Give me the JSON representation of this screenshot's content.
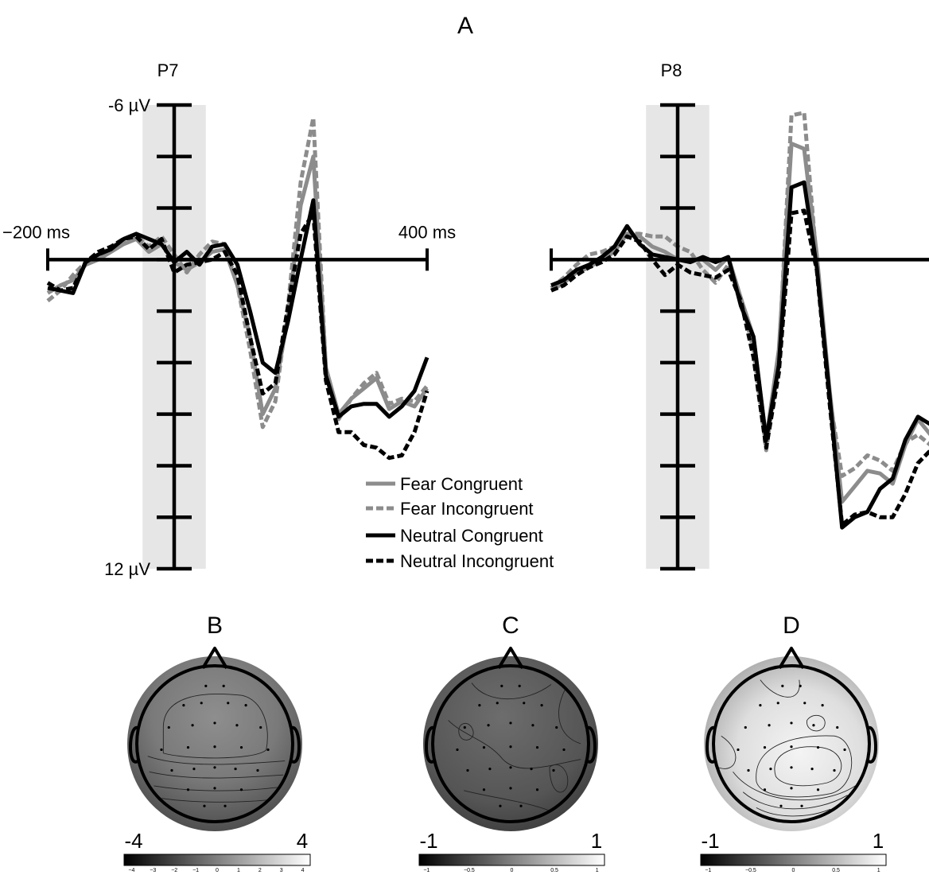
{
  "panel_labels": {
    "a": "A",
    "b": "B",
    "c": "C",
    "d": "D"
  },
  "legend": [
    {
      "name": "Fear Congruent",
      "color": "#8c8c8c",
      "dash": false
    },
    {
      "name": "Fear Incongruent",
      "color": "#8c8c8c",
      "dash": true
    },
    {
      "name": "Neutral Congruent",
      "color": "#000000",
      "dash": false
    },
    {
      "name": "Neutral Incongruent",
      "color": "#000000",
      "dash": true
    }
  ],
  "chart_data": [
    {
      "type": "line",
      "title": "P7",
      "y_axis_inverted": true,
      "x_range": [
        -200,
        400
      ],
      "y_range": [
        -6,
        12
      ],
      "x_tick_labels": [
        "−200 ms",
        "400 ms"
      ],
      "y_tick_labels": [
        "-6 µV",
        "12 µV"
      ],
      "highlight_window": [
        -50,
        50
      ],
      "series": [
        {
          "name": "Fear Congruent",
          "x": [
            -200,
            -180,
            -160,
            -140,
            -120,
            -100,
            -80,
            -60,
            -40,
            -20,
            0,
            20,
            40,
            60,
            80,
            100,
            120,
            140,
            160,
            180,
            200,
            220,
            240,
            260,
            280,
            300,
            320,
            340,
            360,
            380,
            400
          ],
          "y": [
            1.3,
            1.0,
            0.8,
            0.2,
            0,
            -0.3,
            -0.6,
            -0.8,
            -0.3,
            -0.6,
            0.1,
            0.4,
            0.1,
            -0.3,
            -0.4,
            1,
            3,
            6,
            5,
            2.2,
            -2.1,
            -4,
            4.2,
            6,
            5.4,
            5,
            4.6,
            5.8,
            5.5,
            5.7,
            5
          ]
        },
        {
          "name": "Fear Incongruent",
          "x": [
            -200,
            -180,
            -160,
            -140,
            -120,
            -100,
            -80,
            -60,
            -40,
            -20,
            0,
            20,
            40,
            60,
            80,
            100,
            120,
            140,
            160,
            180,
            200,
            220,
            240,
            260,
            280,
            300,
            320,
            340,
            360,
            380,
            400
          ],
          "y": [
            1.6,
            1.2,
            0.6,
            0.1,
            -0.1,
            -0.5,
            -0.7,
            -0.9,
            -0.5,
            -0.9,
            -0.2,
            0.5,
            -0.2,
            -0.7,
            -0.6,
            1,
            3.5,
            6.5,
            5.5,
            1.8,
            -3,
            -5.5,
            4.3,
            6.2,
            5.4,
            4.8,
            4.4,
            5.6,
            5.4,
            5.5,
            4.9
          ]
        },
        {
          "name": "Neutral Congruent",
          "x": [
            -200,
            -180,
            -160,
            -140,
            -120,
            -100,
            -80,
            -60,
            -40,
            -20,
            0,
            20,
            40,
            60,
            80,
            100,
            120,
            140,
            160,
            180,
            200,
            220,
            240,
            260,
            280,
            300,
            320,
            340,
            360,
            380,
            400
          ],
          "y": [
            1.1,
            1.2,
            1.3,
            0.1,
            -0.2,
            -0.4,
            -0.8,
            -1,
            -0.8,
            -0.6,
            0.1,
            -0.3,
            0.2,
            -0.5,
            -0.6,
            0.2,
            2,
            4,
            4.4,
            2.4,
            0,
            -2.3,
            4.5,
            6.1,
            5.7,
            5.6,
            5.6,
            6.1,
            5.7,
            5.1,
            3.8
          ]
        },
        {
          "name": "Neutral Incongruent",
          "x": [
            -200,
            -180,
            -160,
            -140,
            -120,
            -100,
            -80,
            -60,
            -40,
            -20,
            0,
            20,
            40,
            60,
            80,
            100,
            120,
            140,
            160,
            180,
            200,
            220,
            240,
            260,
            280,
            300,
            320,
            340,
            360,
            380,
            400
          ],
          "y": [
            0.9,
            1.2,
            1.1,
            0.1,
            -0.3,
            -0.5,
            -0.8,
            -0.9,
            -0.4,
            -0.8,
            0.5,
            0.2,
            0.1,
            0,
            -0.3,
            0.6,
            3,
            5.2,
            4.8,
            1.8,
            -1,
            -1.8,
            4.7,
            6.7,
            6.7,
            7.2,
            7.3,
            7.7,
            7.6,
            6.7,
            5.1
          ]
        }
      ]
    },
    {
      "type": "line",
      "title": "P8",
      "y_axis_inverted": true,
      "x_range": [
        -200,
        400
      ],
      "y_range": [
        -6,
        12
      ],
      "highlight_window": [
        -50,
        50
      ],
      "series": [
        {
          "name": "Fear Congruent",
          "x": [
            -200,
            -180,
            -160,
            -140,
            -120,
            -100,
            -80,
            -60,
            -40,
            -20,
            0,
            20,
            40,
            60,
            80,
            100,
            120,
            140,
            160,
            180,
            200,
            220,
            240,
            260,
            280,
            300,
            320,
            340,
            360,
            380,
            400
          ],
          "y": [
            1.2,
            0.9,
            0.5,
            0.3,
            0,
            -0.3,
            -1,
            -0.9,
            -0.5,
            -0.3,
            0,
            0,
            0,
            0.4,
            -0.1,
            1.5,
            3,
            7,
            3.5,
            -4.5,
            -4.3,
            -0.2,
            5,
            9.4,
            8.8,
            8.2,
            8.3,
            8.7,
            7.2,
            6.2,
            6.8
          ]
        },
        {
          "name": "Fear Incongruent",
          "x": [
            -200,
            -180,
            -160,
            -140,
            -120,
            -100,
            -80,
            -60,
            -40,
            -20,
            0,
            20,
            40,
            60,
            80,
            100,
            120,
            140,
            160,
            180,
            200,
            220,
            240,
            260,
            280,
            300,
            320,
            340,
            360,
            380,
            400
          ],
          "y": [
            1.1,
            0.7,
            0.2,
            -0.2,
            -0.3,
            -0.5,
            -1,
            -1,
            -0.9,
            -0.9,
            -0.5,
            -0.3,
            0.4,
            0.9,
            0.2,
            1.5,
            3.5,
            7.4,
            3.8,
            -5.6,
            -5.7,
            0.1,
            5.3,
            8.4,
            8.1,
            7.6,
            7.8,
            8.2,
            7.1,
            6.8,
            7.2
          ]
        },
        {
          "name": "Neutral Congruent",
          "x": [
            -200,
            -180,
            -160,
            -140,
            -120,
            -100,
            -80,
            -60,
            -40,
            -20,
            0,
            20,
            40,
            60,
            80,
            100,
            120,
            140,
            160,
            180,
            200,
            220,
            240,
            260,
            280,
            300,
            320,
            340,
            360,
            380,
            400
          ],
          "y": [
            1,
            0.8,
            0.4,
            0.2,
            -0.1,
            -0.5,
            -1.3,
            -0.6,
            -0.2,
            -0.1,
            0,
            0.1,
            -0.1,
            0.1,
            -0.1,
            1.8,
            3,
            7,
            4.1,
            -2.8,
            -3,
            0.3,
            5.2,
            10.4,
            10,
            9.8,
            8.9,
            8.5,
            7,
            6.1,
            6.4
          ]
        },
        {
          "name": "Neutral Incongruent",
          "x": [
            -200,
            -180,
            -160,
            -140,
            -120,
            -100,
            -80,
            -60,
            -40,
            -20,
            0,
            20,
            40,
            60,
            80,
            100,
            120,
            140,
            160,
            180,
            200,
            220,
            240,
            260,
            280,
            300,
            320,
            340,
            360,
            380,
            400
          ],
          "y": [
            1.2,
            1,
            0.6,
            0.3,
            0.1,
            -0.2,
            -0.9,
            -0.7,
            0,
            0.6,
            0.2,
            0.5,
            0.6,
            0.7,
            0.4,
            1.6,
            3.8,
            7.3,
            4.4,
            -1.8,
            -1.9,
            0.4,
            5.5,
            10.3,
            9.9,
            9.8,
            10,
            10,
            9.1,
            7.9,
            7.4
          ]
        }
      ]
    },
    {
      "type": "heatmap",
      "title": "B",
      "colorbar_range": [
        -4,
        4
      ],
      "colorbar_end_labels": [
        "-4",
        "4"
      ],
      "colorbar_ticks": [
        "−4",
        "−3",
        "−2",
        "−1",
        "0",
        "1",
        "2",
        "3",
        "4"
      ]
    },
    {
      "type": "heatmap",
      "title": "C",
      "colorbar_range": [
        -1,
        1
      ],
      "colorbar_end_labels": [
        "-1",
        "1"
      ],
      "colorbar_ticks": [
        "−1",
        "−0.5",
        "0",
        "0.5",
        "1"
      ]
    },
    {
      "type": "heatmap",
      "title": "D",
      "colorbar_range": [
        -1,
        1
      ],
      "colorbar_end_labels": [
        "-1",
        "1"
      ],
      "colorbar_ticks": [
        "−1",
        "−0.5",
        "0",
        "0.5",
        "1"
      ]
    }
  ]
}
